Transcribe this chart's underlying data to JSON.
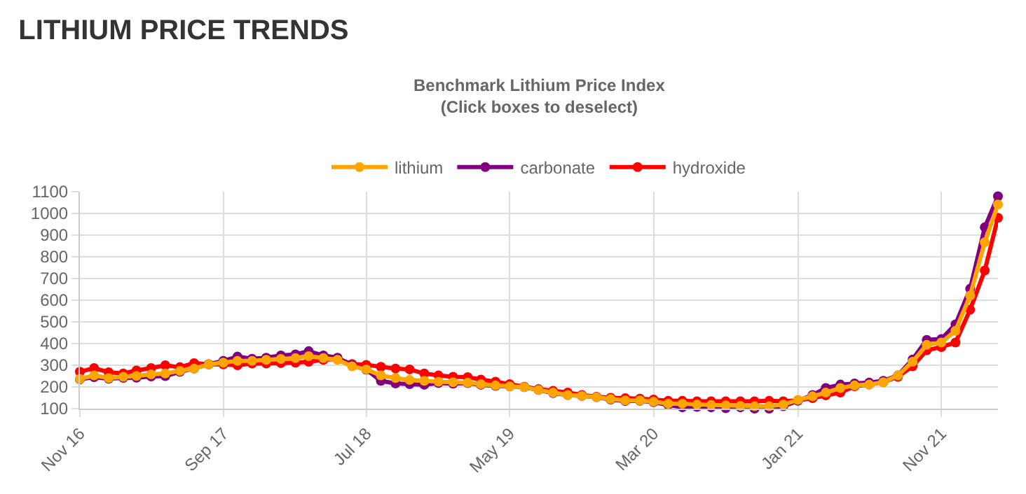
{
  "chart_data": {
    "type": "line",
    "title": "LITHIUM PRICE TRENDS",
    "subtitle": "Benchmark Lithium Price Index\n(Click boxes to deselect)",
    "x": [
      "2016-11",
      "2016-12",
      "2017-01",
      "2017-02",
      "2017-03",
      "2017-04",
      "2017-05",
      "2017-06",
      "2017-07",
      "2017-08",
      "2017-09",
      "2017-10",
      "2017-11",
      "2017-12",
      "2018-01",
      "2018-02",
      "2018-03",
      "2018-04",
      "2018-05",
      "2018-06",
      "2018-07",
      "2018-08",
      "2018-09",
      "2018-10",
      "2018-11",
      "2018-12",
      "2019-01",
      "2019-02",
      "2019-03",
      "2019-04",
      "2019-05",
      "2019-06",
      "2019-07",
      "2019-08",
      "2019-09",
      "2019-10",
      "2019-11",
      "2019-12",
      "2020-01",
      "2020-02",
      "2020-03",
      "2020-04",
      "2020-05",
      "2020-06",
      "2020-07",
      "2020-08",
      "2020-09",
      "2020-10",
      "2020-11",
      "2020-12",
      "2021-01",
      "2021-02",
      "2021-03",
      "2021-04",
      "2021-05",
      "2021-06",
      "2021-07",
      "2021-08",
      "2021-09",
      "2021-10",
      "2021-11",
      "2021-12",
      "2022-01",
      "2022-02",
      "2022-03"
    ],
    "series": [
      {
        "name": "lithium",
        "color": "#ffa500",
        "values": [
          237,
          253,
          241,
          247,
          251,
          258,
          262,
          274,
          285,
          304,
          312,
          320,
          320,
          325,
          329,
          333,
          342,
          333,
          325,
          295,
          281,
          253,
          241,
          232,
          228,
          224,
          222,
          220,
          213,
          207,
          203,
          199,
          186,
          174,
          163,
          159,
          153,
          144,
          138,
          138,
          132,
          123,
          123,
          119,
          117,
          115,
          113,
          111,
          111,
          119,
          140,
          157,
          174,
          195,
          207,
          211,
          222,
          253,
          316,
          394,
          405,
          459,
          621,
          867,
          1041
        ]
      },
      {
        "name": "carbonate",
        "color": "#800080",
        "values": [
          235,
          245,
          238,
          242,
          243,
          248,
          250,
          270,
          285,
          305,
          320,
          340,
          330,
          335,
          345,
          350,
          365,
          345,
          335,
          300,
          280,
          228,
          216,
          213,
          210,
          218,
          215,
          218,
          210,
          205,
          203,
          199,
          186,
          172,
          163,
          159,
          153,
          142,
          135,
          136,
          130,
          117,
          106,
          108,
          106,
          102,
          106,
          100,
          100,
          111,
          136,
          163,
          195,
          211,
          216,
          220,
          228,
          253,
          327,
          417,
          421,
          489,
          653,
          936,
          1079
        ]
      },
      {
        "name": "hydroxide",
        "color": "#ff0000",
        "values": [
          270,
          287,
          268,
          262,
          276,
          287,
          300,
          291,
          310,
          304,
          304,
          300,
          308,
          308,
          310,
          312,
          316,
          325,
          329,
          306,
          302,
          293,
          285,
          281,
          262,
          253,
          247,
          245,
          234,
          224,
          213,
          201,
          190,
          182,
          174,
          163,
          155,
          150,
          148,
          146,
          142,
          136,
          136,
          134,
          134,
          134,
          134,
          134,
          136,
          134,
          138,
          148,
          161,
          174,
          203,
          211,
          222,
          247,
          295,
          369,
          384,
          405,
          556,
          737,
          980
        ]
      }
    ],
    "xlim": [
      "2016-11",
      "2022-03"
    ],
    "xticks": [
      {
        "value": "2016-11",
        "label": "Nov 16"
      },
      {
        "value": "2017-09",
        "label": "Sep 17"
      },
      {
        "value": "2018-07",
        "label": "Jul 18"
      },
      {
        "value": "2019-05",
        "label": "May 19"
      },
      {
        "value": "2020-03",
        "label": "Mar 20"
      },
      {
        "value": "2021-01",
        "label": "Jan 21"
      },
      {
        "value": "2021-11",
        "label": "Nov 21"
      }
    ],
    "ylim": [
      100,
      1100
    ],
    "yticks": [
      100,
      200,
      300,
      400,
      500,
      600,
      700,
      800,
      900,
      1000,
      1100
    ],
    "grid": true,
    "legend": "top",
    "marker": "circle",
    "line_style": "solid"
  }
}
